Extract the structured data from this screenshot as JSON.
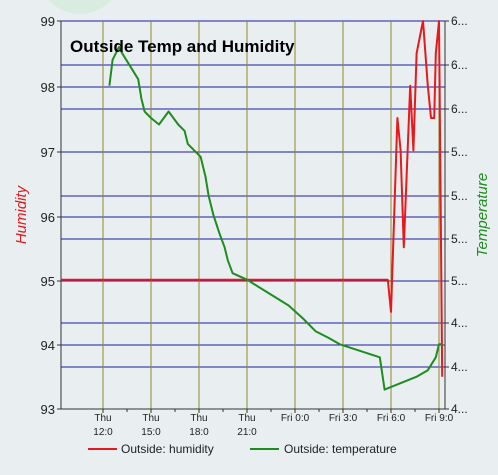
{
  "colors": {
    "background": "#e9eef1",
    "humidity": "#e8191c",
    "temperature": "#1f8c1f",
    "horizontal_grid": "#1a1aa8",
    "vertical_grid": "#8a8a2a",
    "bubble": "#d8ece0"
  },
  "chart_data": {
    "type": "line",
    "title": "Outside Temp and Humidity",
    "x_ticks": [
      {
        "line1": "Thu",
        "line2": "12:0"
      },
      {
        "line1": "Thu",
        "line2": "15:0"
      },
      {
        "line1": "Thu",
        "line2": "18:0"
      },
      {
        "line1": "Thu",
        "line2": "21:0"
      },
      {
        "line1": "Fri 0:0",
        "line2": ""
      },
      {
        "line1": "Fri 3:0",
        "line2": ""
      },
      {
        "line1": "Fri 6:0",
        "line2": ""
      },
      {
        "line1": "Fri 9:0",
        "line2": ""
      }
    ],
    "x_tick_hours": [
      12,
      15,
      18,
      21,
      24,
      27,
      30,
      33
    ],
    "xlim_hours": [
      12,
      33.2
    ],
    "y_left": {
      "label": "Humidity",
      "range": [
        93,
        99
      ],
      "ticks": [
        "99",
        "98",
        "97",
        "96",
        "95",
        "94",
        "93"
      ]
    },
    "y_right": {
      "label": "Temperature",
      "ticks": [
        "6...",
        "6...",
        "6...",
        "5...",
        "5...",
        "5...",
        "5...",
        "4...",
        "4...",
        "4..."
      ]
    },
    "grid": true,
    "legend": {
      "position": "bottom"
    },
    "series": [
      {
        "name": "Outside: humidity",
        "axis": "left",
        "x_hours": [
          9,
          29.8,
          30.0,
          30.4,
          30.6,
          30.8,
          31.2,
          31.4,
          31.6,
          32.0,
          32.3,
          32.5,
          32.7,
          32.8,
          33.0,
          33.2
        ],
        "y": [
          95.0,
          95.0,
          94.5,
          97.5,
          97.0,
          95.5,
          98.0,
          97.0,
          98.5,
          99.0,
          98.0,
          97.5,
          97.5,
          98.5,
          99.0,
          93.5
        ]
      },
      {
        "name": "Outside: temperature",
        "axis": "left",
        "x_hours": [
          12.4,
          12.6,
          13.0,
          13.2,
          14.2,
          14.4,
          14.6,
          15.0,
          15.5,
          16.1,
          16.7,
          17.1,
          17.3,
          18.1,
          18.4,
          18.6,
          18.9,
          19.3,
          19.6,
          19.8,
          20.1,
          21.0,
          23.6,
          24.5,
          25.3,
          26.1,
          26.8,
          29.3,
          29.6,
          31.6,
          32.3,
          32.8,
          33.0,
          33.2
        ],
        "y": [
          98.0,
          98.4,
          98.6,
          98.5,
          98.1,
          97.8,
          97.6,
          97.5,
          97.4,
          97.6,
          97.4,
          97.3,
          97.1,
          96.9,
          96.6,
          96.3,
          96.0,
          95.7,
          95.5,
          95.3,
          95.1,
          95.0,
          94.6,
          94.4,
          94.2,
          94.1,
          94.0,
          93.8,
          93.3,
          93.5,
          93.6,
          93.8,
          94.0,
          94.0
        ]
      }
    ]
  }
}
